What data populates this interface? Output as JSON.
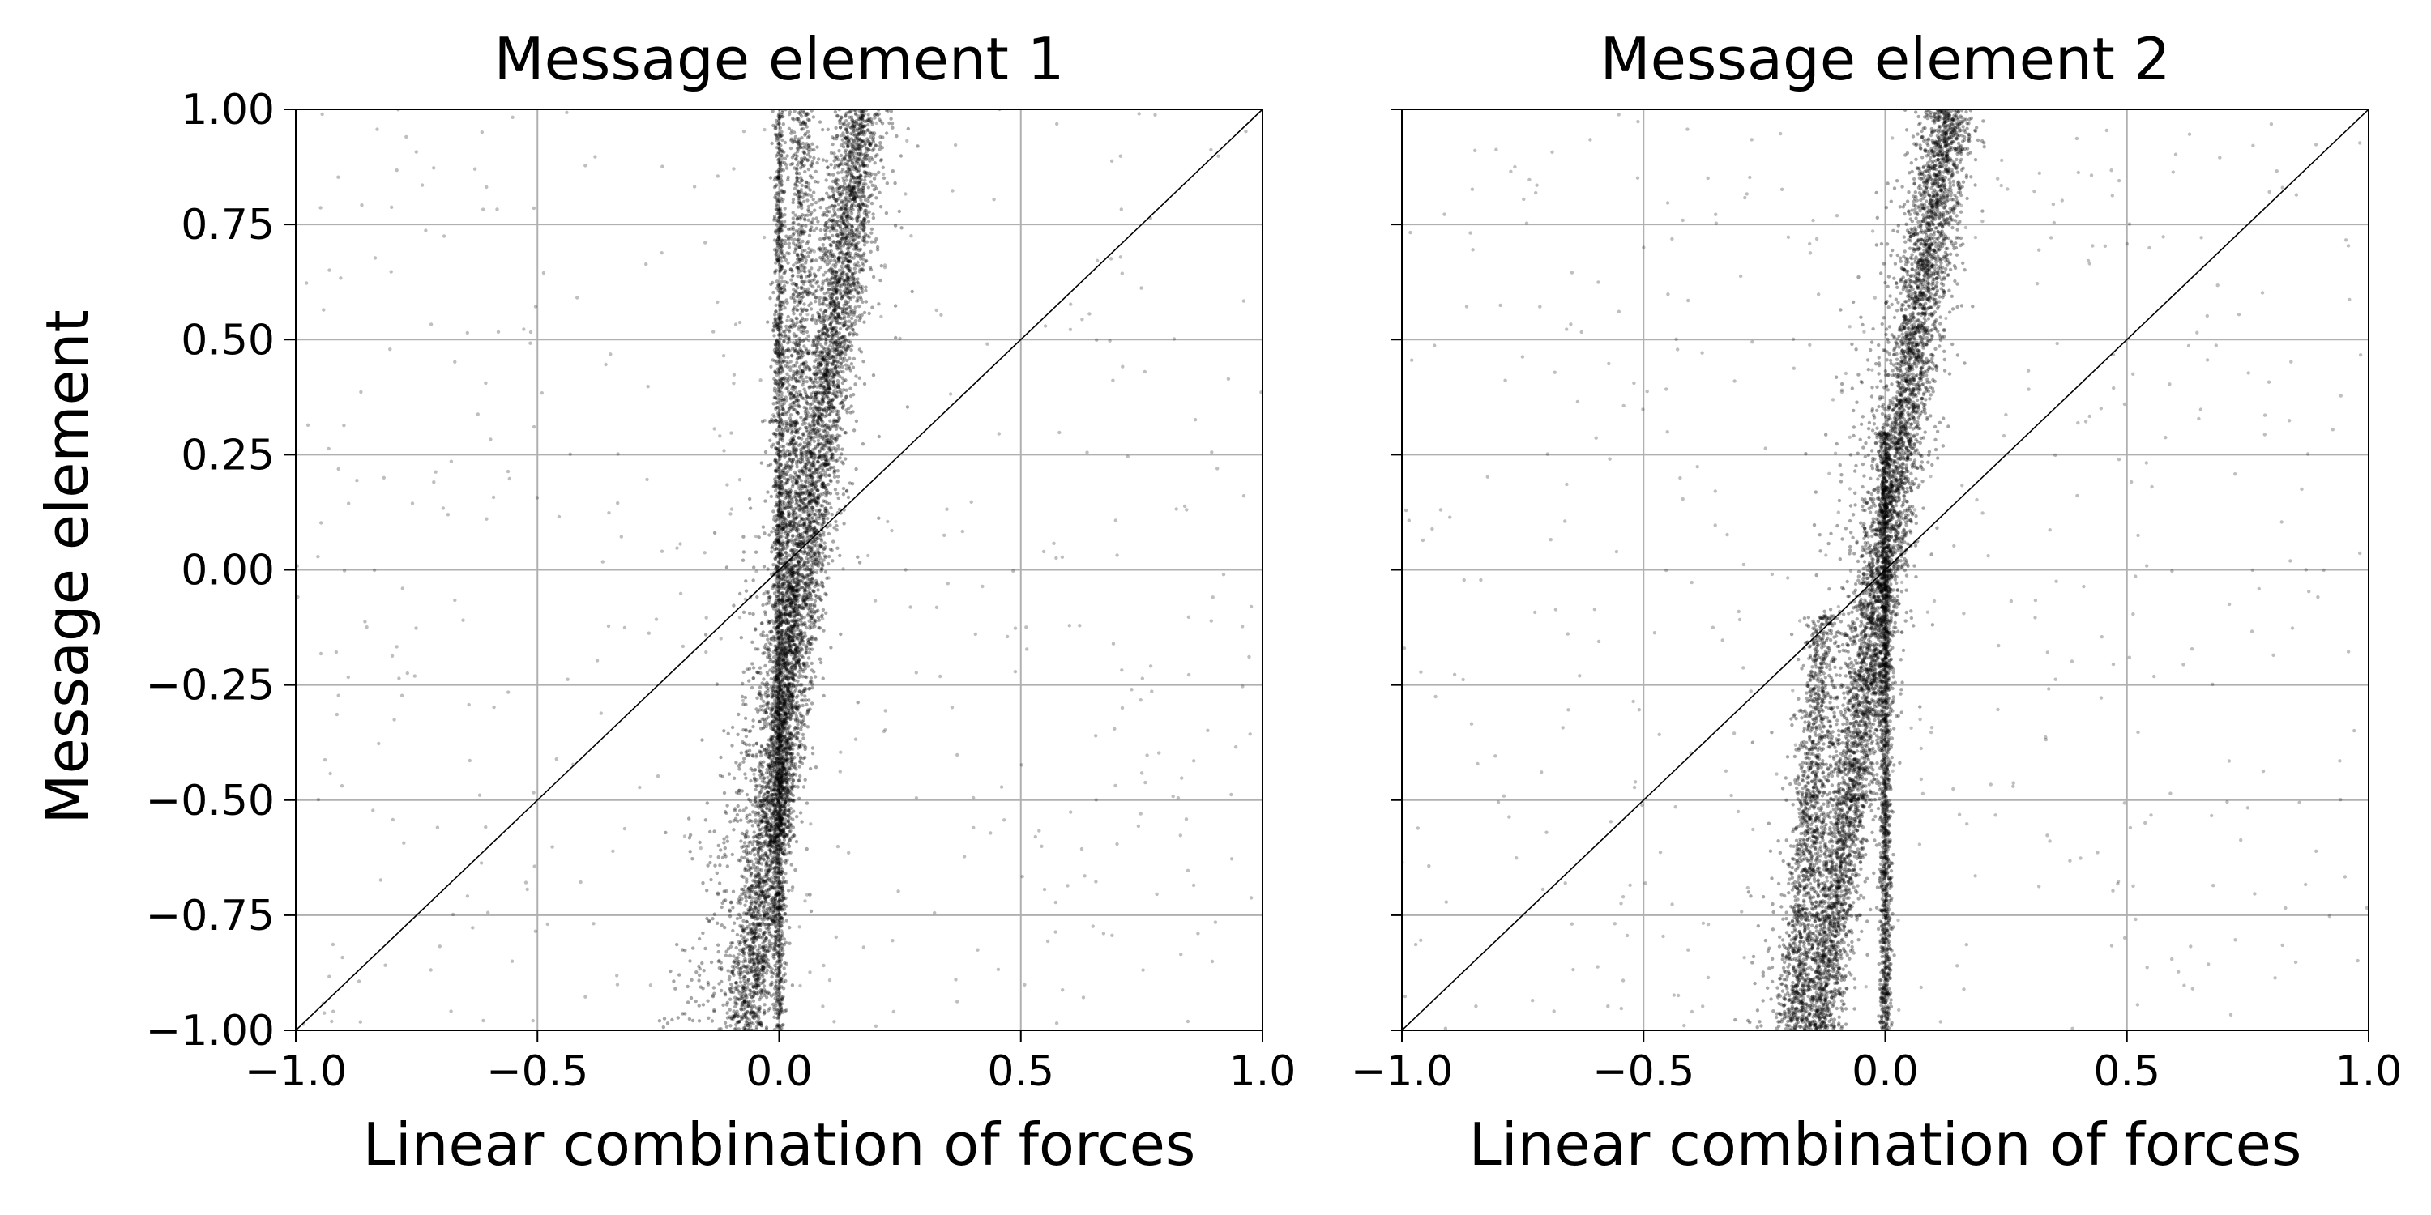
{
  "figure": {
    "ylabel": "Message element"
  },
  "chart_data": [
    {
      "type": "scatter",
      "title": "Message element 1",
      "xlabel": "Linear combination of forces",
      "ylabel": "Message element",
      "xlim": [
        -1.0,
        1.0
      ],
      "ylim": [
        -1.0,
        1.0
      ],
      "grid": true,
      "x_ticks": [
        -1.0,
        -0.5,
        0.0,
        0.5,
        1.0
      ],
      "x_tick_labels": [
        "−1.0",
        "−0.5",
        "0.0",
        "0.5",
        "1.0"
      ],
      "y_ticks": [
        -1.0,
        -0.75,
        -0.5,
        -0.25,
        0.0,
        0.25,
        0.5,
        0.75,
        1.0
      ],
      "y_tick_labels": [
        "−1.00",
        "−0.75",
        "−0.50",
        "−0.25",
        "0.00",
        "0.25",
        "0.50",
        "0.75",
        "1.00"
      ],
      "reference_line": {
        "x": [
          -1.0,
          1.0
        ],
        "y": [
          -1.0,
          1.0
        ],
        "color": "#000000"
      },
      "point_color": "#000000",
      "bands": [
        {
          "x_at_y_min": -0.07,
          "x_at_y_max": 0.17,
          "y_range": [
            -1.0,
            1.0
          ],
          "spread": 0.05,
          "weight": 0.55
        },
        {
          "x_at_y_min": 0.0,
          "x_at_y_max": 0.0,
          "y_range": [
            -1.0,
            1.0
          ],
          "spread": 0.012,
          "weight": 0.15
        },
        {
          "x_at_y_min": -0.01,
          "x_at_y_max": 0.05,
          "y_range": [
            -0.6,
            1.0
          ],
          "spread": 0.03,
          "weight": 0.15
        },
        {
          "x_at_y_min": -0.14,
          "x_at_y_max": 0.18,
          "y_range": [
            -1.0,
            1.0
          ],
          "spread": 0.1,
          "weight": 0.1
        },
        {
          "x_at_y_min": -1.0,
          "x_at_y_max": 1.0,
          "y_range": [
            -1.0,
            1.0
          ],
          "spread": 1.0,
          "weight": 0.05
        }
      ]
    },
    {
      "type": "scatter",
      "title": "Message element 2",
      "xlabel": "Linear combination of forces",
      "xlim": [
        -1.0,
        1.0
      ],
      "ylim": [
        -1.0,
        1.0
      ],
      "grid": true,
      "x_ticks": [
        -1.0,
        -0.5,
        0.0,
        0.5,
        1.0
      ],
      "x_tick_labels": [
        "−1.0",
        "−0.5",
        "0.0",
        "0.5",
        "1.0"
      ],
      "reference_line": {
        "x": [
          -1.0,
          1.0
        ],
        "y": [
          -1.0,
          1.0
        ],
        "color": "#000000"
      },
      "point_color": "#000000",
      "bands": [
        {
          "x_at_y_min": -0.14,
          "x_at_y_max": 0.13,
          "y_range": [
            -1.0,
            1.0
          ],
          "spread": 0.05,
          "weight": 0.55
        },
        {
          "x_at_y_min": 0.0,
          "x_at_y_max": 0.0,
          "y_range": [
            -1.0,
            0.3
          ],
          "spread": 0.012,
          "weight": 0.15
        },
        {
          "x_at_y_min": -0.19,
          "x_at_y_max": -0.05,
          "y_range": [
            -1.0,
            -0.1
          ],
          "spread": 0.035,
          "weight": 0.12
        },
        {
          "x_at_y_min": -0.2,
          "x_at_y_max": 0.13,
          "y_range": [
            -1.0,
            1.0
          ],
          "spread": 0.1,
          "weight": 0.13
        },
        {
          "x_at_y_min": -1.0,
          "x_at_y_max": 1.0,
          "y_range": [
            -1.0,
            1.0
          ],
          "spread": 1.0,
          "weight": 0.05
        }
      ]
    }
  ]
}
